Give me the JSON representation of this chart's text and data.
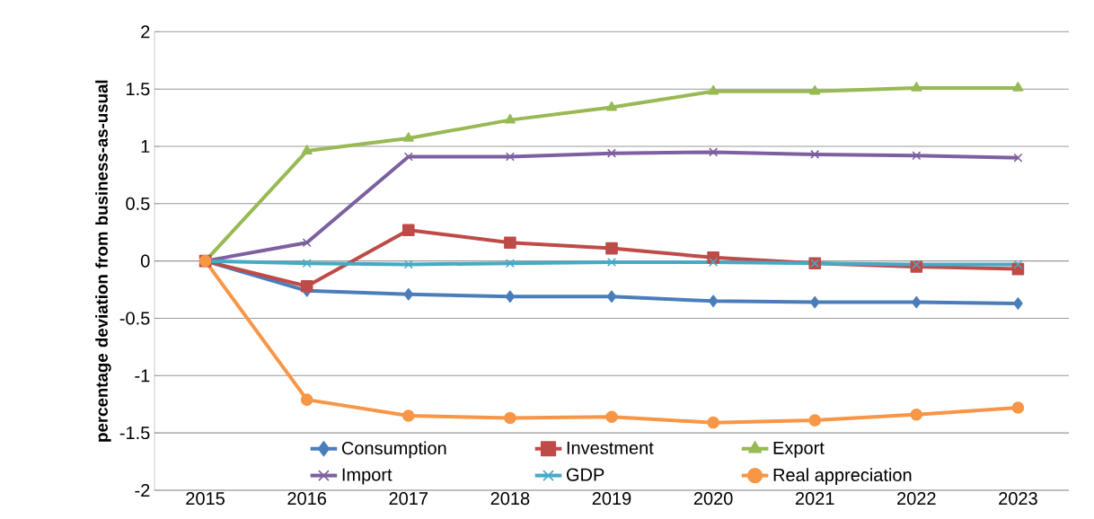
{
  "chart_data": {
    "type": "line",
    "ylabel": "percentage deviation from business-as-usual",
    "categories": [
      "2015",
      "2016",
      "2017",
      "2018",
      "2019",
      "2020",
      "2021",
      "2022",
      "2023"
    ],
    "series": [
      {
        "name": "Consumption",
        "color": "#4a7ebb",
        "marker": "diamond",
        "values": [
          0,
          -0.26,
          -0.29,
          -0.31,
          -0.31,
          -0.35,
          -0.36,
          -0.36,
          -0.37
        ]
      },
      {
        "name": "Investment",
        "color": "#be4b48",
        "marker": "square",
        "values": [
          0,
          -0.22,
          0.27,
          0.16,
          0.11,
          0.03,
          -0.02,
          -0.05,
          -0.07
        ]
      },
      {
        "name": "Export",
        "color": "#98b954",
        "marker": "triangle",
        "values": [
          0,
          0.96,
          1.07,
          1.23,
          1.34,
          1.48,
          1.48,
          1.51,
          1.51
        ]
      },
      {
        "name": "Import",
        "color": "#7d60a0",
        "marker": "cross",
        "values": [
          0,
          0.16,
          0.91,
          0.91,
          0.94,
          0.95,
          0.93,
          0.92,
          0.9
        ]
      },
      {
        "name": "GDP",
        "color": "#46aac5",
        "marker": "cross",
        "values": [
          0,
          -0.02,
          -0.03,
          -0.02,
          -0.01,
          -0.01,
          -0.02,
          -0.03,
          -0.03
        ]
      },
      {
        "name": "Real appreciation",
        "color": "#f79646",
        "marker": "circle",
        "values": [
          0,
          -1.21,
          -1.35,
          -1.37,
          -1.36,
          -1.41,
          -1.39,
          -1.34,
          -1.28
        ]
      }
    ],
    "ylim": [
      -2,
      2
    ],
    "yticks": [
      -2,
      -1.5,
      -1,
      -0.5,
      0,
      0.5,
      1,
      1.5,
      2
    ],
    "grid": "y",
    "legend": "bottom",
    "line_style": "solid"
  }
}
